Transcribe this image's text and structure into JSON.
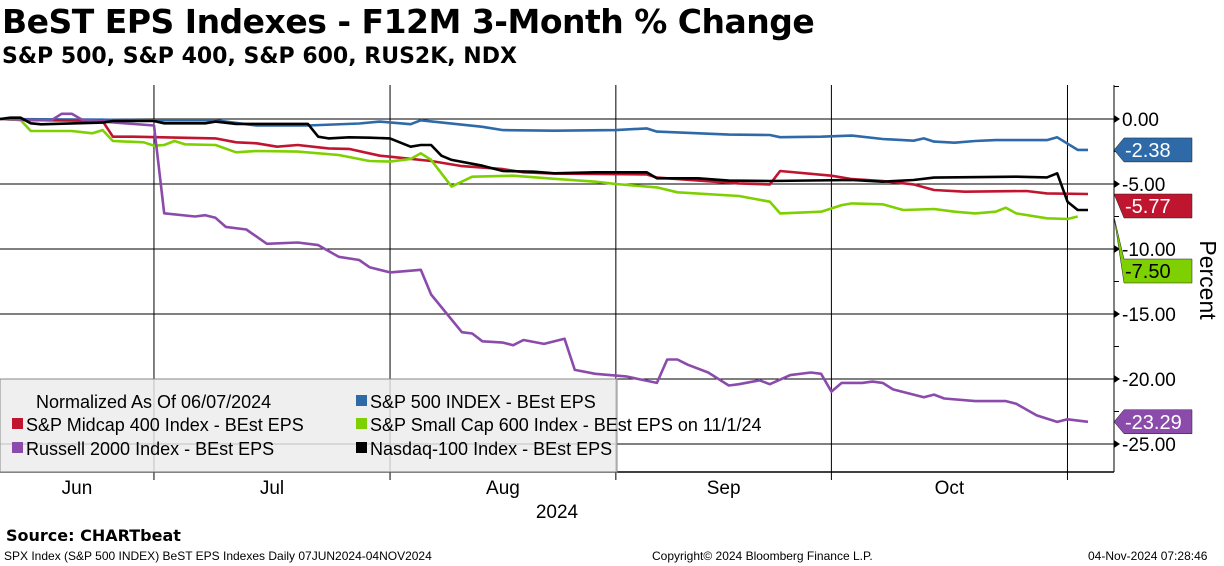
{
  "header": {
    "title": "BeST EPS Indexes - F12M 3-Month % Change",
    "subtitle": "S&P 500, S&P 400, S&P 600, RUS2K, NDX"
  },
  "footer": {
    "source": "Source: CHARTbeat",
    "description": "SPX Index (S&P 500 INDEX) BeST EPS Indexes  Daily 07JUN2024-04NOV2024",
    "copyright": "Copyright© 2024 Bloomberg Finance L.P.",
    "timestamp": "04-Nov-2024 07:28:46"
  },
  "chart_data": {
    "type": "line",
    "title": "BeST EPS Indexes - F12M 3-Month % Change",
    "xlabel": "2024",
    "ylabel": "Percent",
    "x_unit": "trading days since 06/07/2024",
    "xlim": [
      0,
      106
    ],
    "ylim": [
      -27,
      2.5
    ],
    "yticks": [
      0,
      -5,
      -10,
      -15,
      -20,
      -25
    ],
    "ytick_labels": [
      "0.00",
      "-5.00",
      "-10.00",
      "-15.00",
      "-20.00",
      "-25.00"
    ],
    "month_boundaries": [
      15,
      38,
      60,
      81,
      104
    ],
    "month_labels": [
      {
        "label": "Jun",
        "x": 7.5
      },
      {
        "label": "Jul",
        "x": 26.5
      },
      {
        "label": "Aug",
        "x": 49
      },
      {
        "label": "Sep",
        "x": 70.5
      },
      {
        "label": "Oct",
        "x": 92.5
      }
    ],
    "year_label": "2024",
    "grid": true,
    "legend": {
      "placement": "bottom-left",
      "note": "Normalized As Of 06/07/2024"
    },
    "series": [
      {
        "name": "S&P 500 INDEX - BEst EPS",
        "color": "#2e6aa8",
        "last_label": "-2.38",
        "points": [
          [
            0,
            0
          ],
          [
            10,
            -0.05
          ],
          [
            15,
            -0.1
          ],
          [
            21,
            -0.1
          ],
          [
            25,
            -0.5
          ],
          [
            30,
            -0.5
          ],
          [
            35,
            -0.35
          ],
          [
            37,
            -0.2
          ],
          [
            40,
            -0.4
          ],
          [
            41,
            -0.1
          ],
          [
            47,
            -0.6
          ],
          [
            49,
            -0.85
          ],
          [
            54,
            -0.9
          ],
          [
            60,
            -0.85
          ],
          [
            63,
            -0.72
          ],
          [
            64,
            -0.97
          ],
          [
            71,
            -1.2
          ],
          [
            75,
            -1.23
          ],
          [
            76,
            -1.4
          ],
          [
            80,
            -1.36
          ],
          [
            83,
            -1.28
          ],
          [
            86,
            -1.54
          ],
          [
            89,
            -1.67
          ],
          [
            90,
            -1.49
          ],
          [
            91,
            -1.74
          ],
          [
            93,
            -1.82
          ],
          [
            95,
            -1.69
          ],
          [
            97,
            -1.62
          ],
          [
            102,
            -1.62
          ],
          [
            103,
            -1.41
          ],
          [
            105,
            -2.38
          ],
          [
            106,
            -2.38
          ]
        ]
      },
      {
        "name": "S&P Midcap 400 Index - BEst EPS",
        "color": "#c0152f",
        "last_label": "-5.77",
        "points": [
          [
            0,
            0
          ],
          [
            2,
            -0.08
          ],
          [
            10,
            -0.15
          ],
          [
            11,
            -1.36
          ],
          [
            13,
            -1.36
          ],
          [
            21,
            -1.49
          ],
          [
            23,
            -1.79
          ],
          [
            25,
            -1.87
          ],
          [
            27,
            -2.13
          ],
          [
            29,
            -2
          ],
          [
            32,
            -2.26
          ],
          [
            34,
            -2.3
          ],
          [
            37,
            -2.82
          ],
          [
            38,
            -2.9
          ],
          [
            42,
            -3.23
          ],
          [
            45,
            -3.62
          ],
          [
            49,
            -3.85
          ],
          [
            51,
            -4.1
          ],
          [
            54,
            -4.2
          ],
          [
            63,
            -4.26
          ],
          [
            64,
            -4.51
          ],
          [
            72,
            -4.95
          ],
          [
            75,
            -5.03
          ],
          [
            76,
            -4.0
          ],
          [
            81,
            -4.36
          ],
          [
            83,
            -4.62
          ],
          [
            86,
            -4.77
          ],
          [
            89,
            -5.03
          ],
          [
            91,
            -5.46
          ],
          [
            94,
            -5.59
          ],
          [
            100,
            -5.54
          ],
          [
            102,
            -5.72
          ],
          [
            106,
            -5.77
          ]
        ]
      },
      {
        "name": "S&P Small Cap 600 Index - BEst EPS on 11/1/24",
        "color": "#7ed000",
        "last_label": "-7.50",
        "points": [
          [
            0,
            0
          ],
          [
            2,
            -0.08
          ],
          [
            3,
            -0.92
          ],
          [
            7,
            -0.92
          ],
          [
            9,
            -1.1
          ],
          [
            10,
            -0.85
          ],
          [
            11,
            -1.69
          ],
          [
            14,
            -1.79
          ],
          [
            15,
            -2.05
          ],
          [
            16,
            -2
          ],
          [
            17,
            -1.69
          ],
          [
            18,
            -1.95
          ],
          [
            21,
            -2
          ],
          [
            23,
            -2.56
          ],
          [
            25,
            -2.46
          ],
          [
            29,
            -2.51
          ],
          [
            33,
            -2.77
          ],
          [
            36,
            -3.23
          ],
          [
            38,
            -3.28
          ],
          [
            40,
            -3.08
          ],
          [
            41,
            -2.64
          ],
          [
            42,
            -3.15
          ],
          [
            44,
            -5.2
          ],
          [
            46,
            -4.44
          ],
          [
            50,
            -4.36
          ],
          [
            54,
            -4.6
          ],
          [
            58,
            -4.82
          ],
          [
            60,
            -5
          ],
          [
            64,
            -5.26
          ],
          [
            66,
            -5.64
          ],
          [
            72,
            -5.92
          ],
          [
            75,
            -6.36
          ],
          [
            76,
            -7.26
          ],
          [
            80,
            -7.13
          ],
          [
            82,
            -6.62
          ],
          [
            83,
            -6.49
          ],
          [
            86,
            -6.56
          ],
          [
            88,
            -7
          ],
          [
            91,
            -6.92
          ],
          [
            93,
            -7.13
          ],
          [
            95,
            -7.26
          ],
          [
            97,
            -7.13
          ],
          [
            98,
            -6.82
          ],
          [
            99,
            -7.26
          ],
          [
            102,
            -7.64
          ],
          [
            104,
            -7.69
          ],
          [
            105,
            -7.5
          ]
        ]
      },
      {
        "name": "Russell 2000 Index - BEst EPS",
        "color": "#8b4bab",
        "last_label": "-23.29",
        "points": [
          [
            0,
            0
          ],
          [
            3,
            -0.08
          ],
          [
            5,
            -0.1
          ],
          [
            6,
            0.4
          ],
          [
            7,
            0.4
          ],
          [
            8,
            -0.05
          ],
          [
            10,
            -0.2
          ],
          [
            15,
            -0.5
          ],
          [
            16,
            -7.25
          ],
          [
            19,
            -7.5
          ],
          [
            20,
            -7.4
          ],
          [
            21,
            -7.6
          ],
          [
            22,
            -8.3
          ],
          [
            24,
            -8.5
          ],
          [
            26,
            -9.6
          ],
          [
            29,
            -9.5
          ],
          [
            31,
            -9.7
          ],
          [
            33,
            -10.6
          ],
          [
            35,
            -10.85
          ],
          [
            36,
            -11.4
          ],
          [
            38,
            -11.8
          ],
          [
            41,
            -11.6
          ],
          [
            42,
            -13.5
          ],
          [
            45,
            -16.4
          ],
          [
            46,
            -16.5
          ],
          [
            47,
            -17.1
          ],
          [
            49,
            -17.2
          ],
          [
            50,
            -17.4
          ],
          [
            51,
            -17.0
          ],
          [
            53,
            -17.3
          ],
          [
            55,
            -16.9
          ],
          [
            56,
            -19.3
          ],
          [
            58,
            -19.6
          ],
          [
            61,
            -19.8
          ],
          [
            64,
            -20.3
          ],
          [
            65,
            -18.5
          ],
          [
            66,
            -18.5
          ],
          [
            67,
            -18.9
          ],
          [
            69,
            -19.5
          ],
          [
            71,
            -20.5
          ],
          [
            72,
            -20.4
          ],
          [
            74,
            -20.1
          ],
          [
            75,
            -20.4
          ],
          [
            77,
            -19.7
          ],
          [
            79,
            -19.5
          ],
          [
            80,
            -19.6
          ],
          [
            81,
            -20.97
          ],
          [
            82,
            -20.3
          ],
          [
            84,
            -20.3
          ],
          [
            85,
            -20.2
          ],
          [
            86,
            -20.3
          ],
          [
            87,
            -20.8
          ],
          [
            90,
            -21.4
          ],
          [
            91,
            -21.2
          ],
          [
            92,
            -21.5
          ],
          [
            95,
            -21.7
          ],
          [
            98,
            -21.7
          ],
          [
            99,
            -21.9
          ],
          [
            101,
            -22.8
          ],
          [
            103,
            -23.3
          ],
          [
            104,
            -23.1
          ],
          [
            106,
            -23.29
          ]
        ]
      },
      {
        "name": "Nasdaq-100 Index - BEst EPS",
        "color": "#000000",
        "last_label": null,
        "points": [
          [
            0,
            0
          ],
          [
            1,
            0.1
          ],
          [
            2,
            0.1
          ],
          [
            3,
            -0.33
          ],
          [
            4,
            -0.41
          ],
          [
            10,
            -0.28
          ],
          [
            11,
            -0.15
          ],
          [
            15,
            -0.15
          ],
          [
            16,
            -0.33
          ],
          [
            20,
            -0.33
          ],
          [
            21,
            -0.2
          ],
          [
            23,
            -0.38
          ],
          [
            30,
            -0.38
          ],
          [
            31,
            -1.36
          ],
          [
            32,
            -1.49
          ],
          [
            34,
            -1.41
          ],
          [
            36,
            -1.44
          ],
          [
            38,
            -1.49
          ],
          [
            40,
            -2.13
          ],
          [
            41,
            -2
          ],
          [
            42,
            -2
          ],
          [
            43,
            -2.82
          ],
          [
            44,
            -3.15
          ],
          [
            47,
            -3.59
          ],
          [
            49,
            -4
          ],
          [
            52,
            -4.05
          ],
          [
            54,
            -4.18
          ],
          [
            58,
            -4.1
          ],
          [
            63,
            -4.1
          ],
          [
            64,
            -4.56
          ],
          [
            68,
            -4.56
          ],
          [
            71,
            -4.74
          ],
          [
            75,
            -4.77
          ],
          [
            83,
            -4.69
          ],
          [
            86,
            -4.82
          ],
          [
            89,
            -4.69
          ],
          [
            91,
            -4.51
          ],
          [
            99,
            -4.44
          ],
          [
            102,
            -4.49
          ],
          [
            103,
            -4.18
          ],
          [
            104,
            -6.36
          ],
          [
            105,
            -7
          ],
          [
            106,
            -7
          ]
        ]
      }
    ],
    "value_label_order": [
      0,
      1,
      2,
      3
    ]
  }
}
